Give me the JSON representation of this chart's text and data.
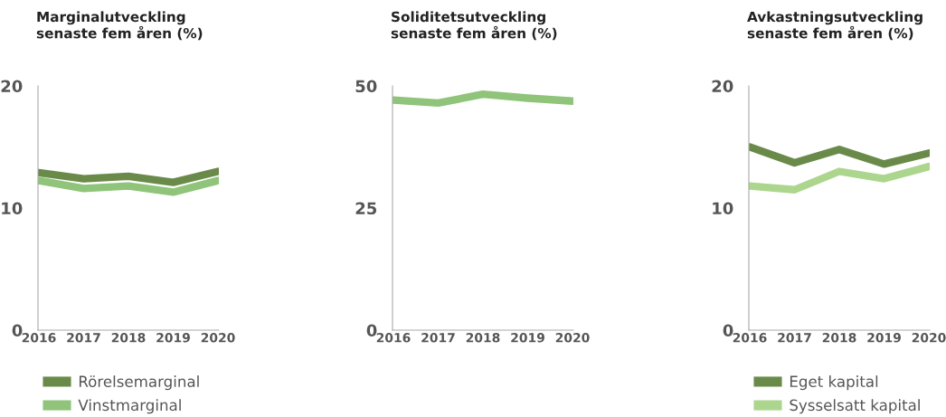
{
  "chart_data": [
    {
      "type": "line",
      "title": "Marginalutveckling\nsenaste fem åren (%)",
      "categories": [
        "2016",
        "2017",
        "2018",
        "2019",
        "2020"
      ],
      "ylim": [
        0,
        20
      ],
      "yticks": [
        0,
        10,
        20
      ],
      "grid": false,
      "legend": "bottom",
      "series": [
        {
          "name": "Rörelsemarginal",
          "color": "#6a8a4a",
          "values": [
            12.9,
            12.4,
            12.6,
            12.1,
            13.0
          ]
        },
        {
          "name": "Vinstmarginal",
          "color": "#8fc47a",
          "values": [
            12.25,
            11.6,
            11.8,
            11.3,
            12.25
          ]
        }
      ]
    },
    {
      "type": "line",
      "title": "Soliditetsutveckling\nsenaste fem åren (%)",
      "categories": [
        "2016",
        "2017",
        "2018",
        "2019",
        "2020"
      ],
      "ylim": [
        0,
        50
      ],
      "yticks": [
        0,
        25,
        50
      ],
      "grid": false,
      "series": [
        {
          "color": "#8fc47a",
          "values": [
            47.1,
            46.5,
            48.3,
            47.5,
            46.9
          ]
        }
      ]
    },
    {
      "type": "line",
      "title": "Avkastningsutveckling\nsenaste fem åren (%)",
      "categories": [
        "2016",
        "2017",
        "2018",
        "2019",
        "2020"
      ],
      "ylim": [
        0,
        20
      ],
      "yticks": [
        0,
        10,
        20
      ],
      "grid": false,
      "legend": "bottom",
      "series": [
        {
          "name": "Eget kapital",
          "color": "#6a8a4a",
          "values": [
            15.0,
            13.7,
            14.8,
            13.6,
            14.5
          ]
        },
        {
          "name": "Sysselsatt kapital",
          "color": "#acd68e",
          "values": [
            11.8,
            11.5,
            13.0,
            12.4,
            13.4
          ]
        }
      ]
    }
  ]
}
